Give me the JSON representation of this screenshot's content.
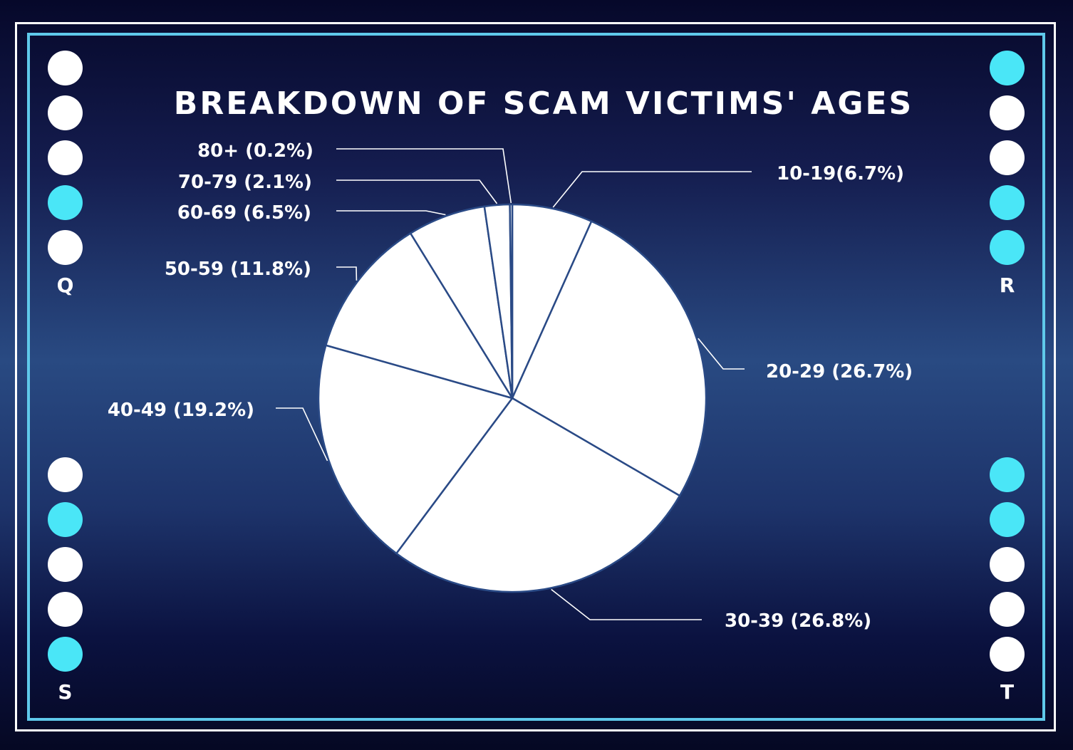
{
  "chart_data": {
    "type": "pie",
    "title": "BREAKDOWN OF SCAM VICTIMS' AGES",
    "categories": [
      "10-19",
      "20-29",
      "30-39",
      "40-49",
      "50-59",
      "60-69",
      "70-79",
      "80+"
    ],
    "values": [
      6.7,
      26.7,
      26.8,
      19.2,
      11.8,
      6.5,
      2.1,
      0.2
    ],
    "labels": [
      "10-19(6.7%)",
      "20-29 (26.7%)",
      "30-39 (26.8%)",
      "40-49 (19.2%)",
      "50-59 (11.8%)",
      "60-69 (6.5%)",
      "70-79 (2.1%)",
      "80+ (0.2%)"
    ],
    "slice_color": "#ffffff",
    "edge_color": "#2a4a86"
  },
  "corners": {
    "q": {
      "letter": "Q",
      "dots": [
        "white",
        "white",
        "white",
        "cyan",
        "white"
      ]
    },
    "r": {
      "letter": "R",
      "dots": [
        "cyan",
        "white",
        "white",
        "cyan",
        "cyan"
      ]
    },
    "s": {
      "letter": "S",
      "dots": [
        "white",
        "cyan",
        "white",
        "white",
        "cyan"
      ]
    },
    "t": {
      "letter": "T",
      "dots": [
        "cyan",
        "cyan",
        "white",
        "white",
        "white"
      ]
    }
  },
  "colors": {
    "frame_outer": "#ffffff",
    "frame_inner": "#5fc9ea",
    "accent_cyan": "#4ae6f7",
    "background_top": "#06082a",
    "background_mid": "#294a82"
  }
}
